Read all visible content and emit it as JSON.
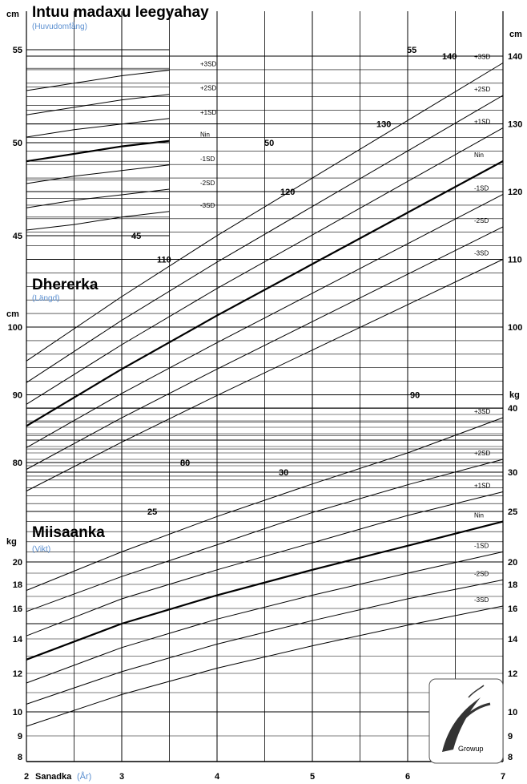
{
  "colors": {
    "accent": "#5b8fd0",
    "ink": "#000000",
    "paper": "#ffffff"
  },
  "sections": {
    "head": {
      "title": "Intuu madaxu leegyahay",
      "subtitle": "(Huvudomfång)",
      "unit": "cm"
    },
    "length": {
      "title": "Dhererka",
      "subtitle": "(Längd)",
      "unit": "cm"
    },
    "weight": {
      "title": "Miisaanka",
      "subtitle": "(Vikt)",
      "unit": "kg"
    },
    "xaxis": {
      "label": "Sanadka",
      "label_sub": "(År)"
    }
  },
  "logo_text": "Growup",
  "chart_data": [
    {
      "type": "line",
      "name": "head-circumference",
      "title": "Intuu madaxu leegyahay",
      "subtitle": "(Huvudomfång)",
      "xlabel": "Sanadka (År)",
      "ylabel": "cm",
      "xlim": [
        2,
        7
      ],
      "ylim": [
        44,
        56
      ],
      "yticks": [
        45,
        50,
        55
      ],
      "series": [
        {
          "name": "+3SD",
          "x": [
            2,
            2.5,
            3,
            3.5
          ],
          "values": [
            52.8,
            53.2,
            53.6,
            53.9
          ]
        },
        {
          "name": "+2SD",
          "x": [
            2,
            2.5,
            3,
            3.5
          ],
          "values": [
            51.5,
            51.9,
            52.3,
            52.6
          ]
        },
        {
          "name": "+1SD",
          "x": [
            2,
            2.5,
            3,
            3.5
          ],
          "values": [
            50.3,
            50.7,
            51.0,
            51.3
          ]
        },
        {
          "name": "Nin",
          "x": [
            2,
            2.5,
            3,
            3.5
          ],
          "values": [
            49.0,
            49.4,
            49.8,
            50.1
          ]
        },
        {
          "name": "-1SD",
          "x": [
            2,
            2.5,
            3,
            3.5
          ],
          "values": [
            47.8,
            48.2,
            48.5,
            48.8
          ]
        },
        {
          "name": "-2SD",
          "x": [
            2,
            2.5,
            3,
            3.5
          ],
          "values": [
            46.5,
            46.9,
            47.2,
            47.5
          ]
        },
        {
          "name": "-3SD",
          "x": [
            2,
            2.5,
            3,
            3.5
          ],
          "values": [
            45.3,
            45.6,
            46.0,
            46.3
          ]
        }
      ]
    },
    {
      "type": "line",
      "name": "length",
      "title": "Dhererka",
      "subtitle": "(Längd)",
      "xlabel": "Sanadka (År)",
      "ylabel": "cm",
      "xlim": [
        2,
        7
      ],
      "ylim": [
        77,
        145
      ],
      "yticks": [
        80,
        90,
        100,
        110,
        120,
        130,
        140
      ],
      "series": [
        {
          "name": "+3SD",
          "x": [
            2,
            3,
            4,
            5,
            6,
            7
          ],
          "values": [
            95.0,
            104.5,
            113.5,
            122.0,
            130.5,
            139.0
          ]
        },
        {
          "name": "+2SD",
          "x": [
            2,
            3,
            4,
            5,
            6,
            7
          ],
          "values": [
            91.8,
            101.0,
            109.6,
            117.8,
            126.0,
            134.2
          ]
        },
        {
          "name": "+1SD",
          "x": [
            2,
            3,
            4,
            5,
            6,
            7
          ],
          "values": [
            88.6,
            97.4,
            105.7,
            113.6,
            121.5,
            129.4
          ]
        },
        {
          "name": "Nin",
          "x": [
            2,
            3,
            4,
            5,
            6,
            7
          ],
          "values": [
            85.4,
            93.8,
            101.7,
            109.3,
            116.9,
            124.5
          ]
        },
        {
          "name": "-1SD",
          "x": [
            2,
            3,
            4,
            5,
            6,
            7
          ],
          "values": [
            82.2,
            90.2,
            97.7,
            105.0,
            112.3,
            119.6
          ]
        },
        {
          "name": "-2SD",
          "x": [
            2,
            3,
            4,
            5,
            6,
            7
          ],
          "values": [
            79.0,
            86.6,
            93.8,
            100.8,
            107.8,
            114.8
          ]
        },
        {
          "name": "-3SD",
          "x": [
            2,
            3,
            4,
            5,
            6,
            7
          ],
          "values": [
            75.8,
            83.0,
            89.9,
            96.6,
            103.3,
            110.0
          ]
        }
      ]
    },
    {
      "type": "line",
      "name": "weight",
      "title": "Miisaanka",
      "subtitle": "(Vikt)",
      "xlabel": "Sanadka (År)",
      "ylabel": "kg",
      "xlim": [
        2,
        7
      ],
      "ylim": [
        8,
        42
      ],
      "yticks": [
        8,
        9,
        10,
        12,
        14,
        16,
        18,
        20,
        25,
        30,
        40
      ],
      "series": [
        {
          "name": "+3SD",
          "x": [
            2,
            3,
            4,
            5,
            6,
            7
          ],
          "values": [
            17.5,
            21.0,
            24.5,
            28.5,
            33.0,
            38.5
          ]
        },
        {
          "name": "+2SD",
          "x": [
            2,
            3,
            4,
            5,
            6,
            7
          ],
          "values": [
            15.8,
            18.7,
            21.7,
            24.9,
            28.4,
            32.0
          ]
        },
        {
          "name": "+1SD",
          "x": [
            2,
            3,
            4,
            5,
            6,
            7
          ],
          "values": [
            14.2,
            16.8,
            19.3,
            21.9,
            24.6,
            27.5
          ]
        },
        {
          "name": "Nin",
          "x": [
            2,
            3,
            4,
            5,
            6,
            7
          ],
          "values": [
            12.8,
            15.0,
            17.1,
            19.3,
            21.6,
            24.0
          ]
        },
        {
          "name": "-1SD",
          "x": [
            2,
            3,
            4,
            5,
            6,
            7
          ],
          "values": [
            11.5,
            13.5,
            15.3,
            17.1,
            19.0,
            21.0
          ]
        },
        {
          "name": "-2SD",
          "x": [
            2,
            3,
            4,
            5,
            6,
            7
          ],
          "values": [
            10.4,
            12.1,
            13.7,
            15.2,
            16.8,
            18.4
          ]
        },
        {
          "name": "-3SD",
          "x": [
            2,
            3,
            4,
            5,
            6,
            7
          ],
          "values": [
            9.4,
            10.9,
            12.3,
            13.6,
            14.9,
            16.2
          ]
        }
      ]
    }
  ],
  "x_ticks": [
    {
      "value": 2,
      "label": "2"
    },
    {
      "value": 3,
      "label": "3"
    },
    {
      "value": 4,
      "label": "4"
    },
    {
      "value": 5,
      "label": "5"
    },
    {
      "value": 6,
      "label": "6"
    },
    {
      "value": 7,
      "label": "7"
    }
  ],
  "inner_labels": [
    "55",
    "50",
    "45",
    "140",
    "130",
    "120",
    "110",
    "90",
    "80",
    "30",
    "25"
  ],
  "right_head_labels": [
    "cm"
  ],
  "left_axis_units": [
    "cm",
    "cm",
    "kg"
  ],
  "right_axis_units": [
    "cm",
    "kg"
  ]
}
